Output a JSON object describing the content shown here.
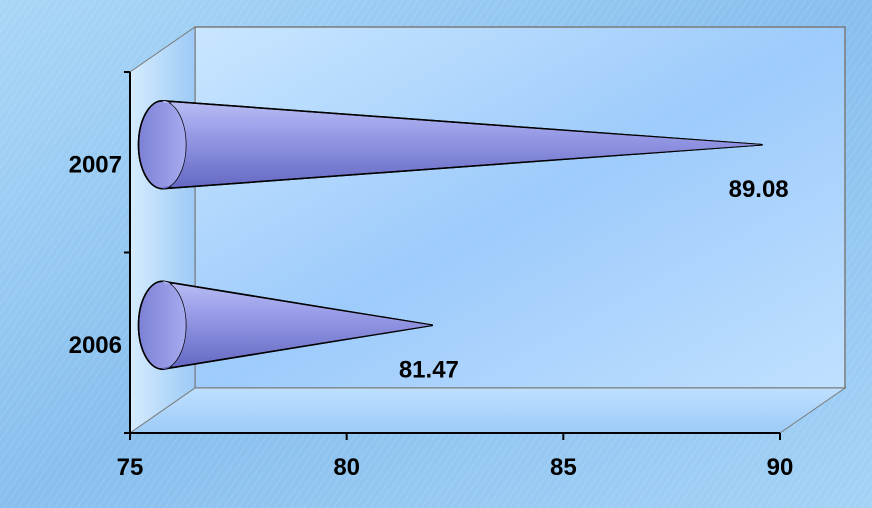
{
  "chart_data": {
    "type": "bar",
    "orientation": "horizontal",
    "bar_shape": "cone",
    "categories": [
      "2006",
      "2007"
    ],
    "values": [
      81.47,
      89.08
    ],
    "data_labels": [
      "81.47",
      "89.08"
    ],
    "xlim": [
      75,
      90
    ],
    "x_ticks": [
      "75",
      "80",
      "85",
      "90"
    ],
    "title": "",
    "xlabel": "",
    "ylabel": "",
    "grid": false,
    "legend": "none",
    "colors": {
      "background": "#8fc4ee",
      "plot_area": "#9ecfff",
      "side_wall": "#b6dcff",
      "bar": "#8a8ee0",
      "bar_dark": "#5b5fb8"
    }
  }
}
